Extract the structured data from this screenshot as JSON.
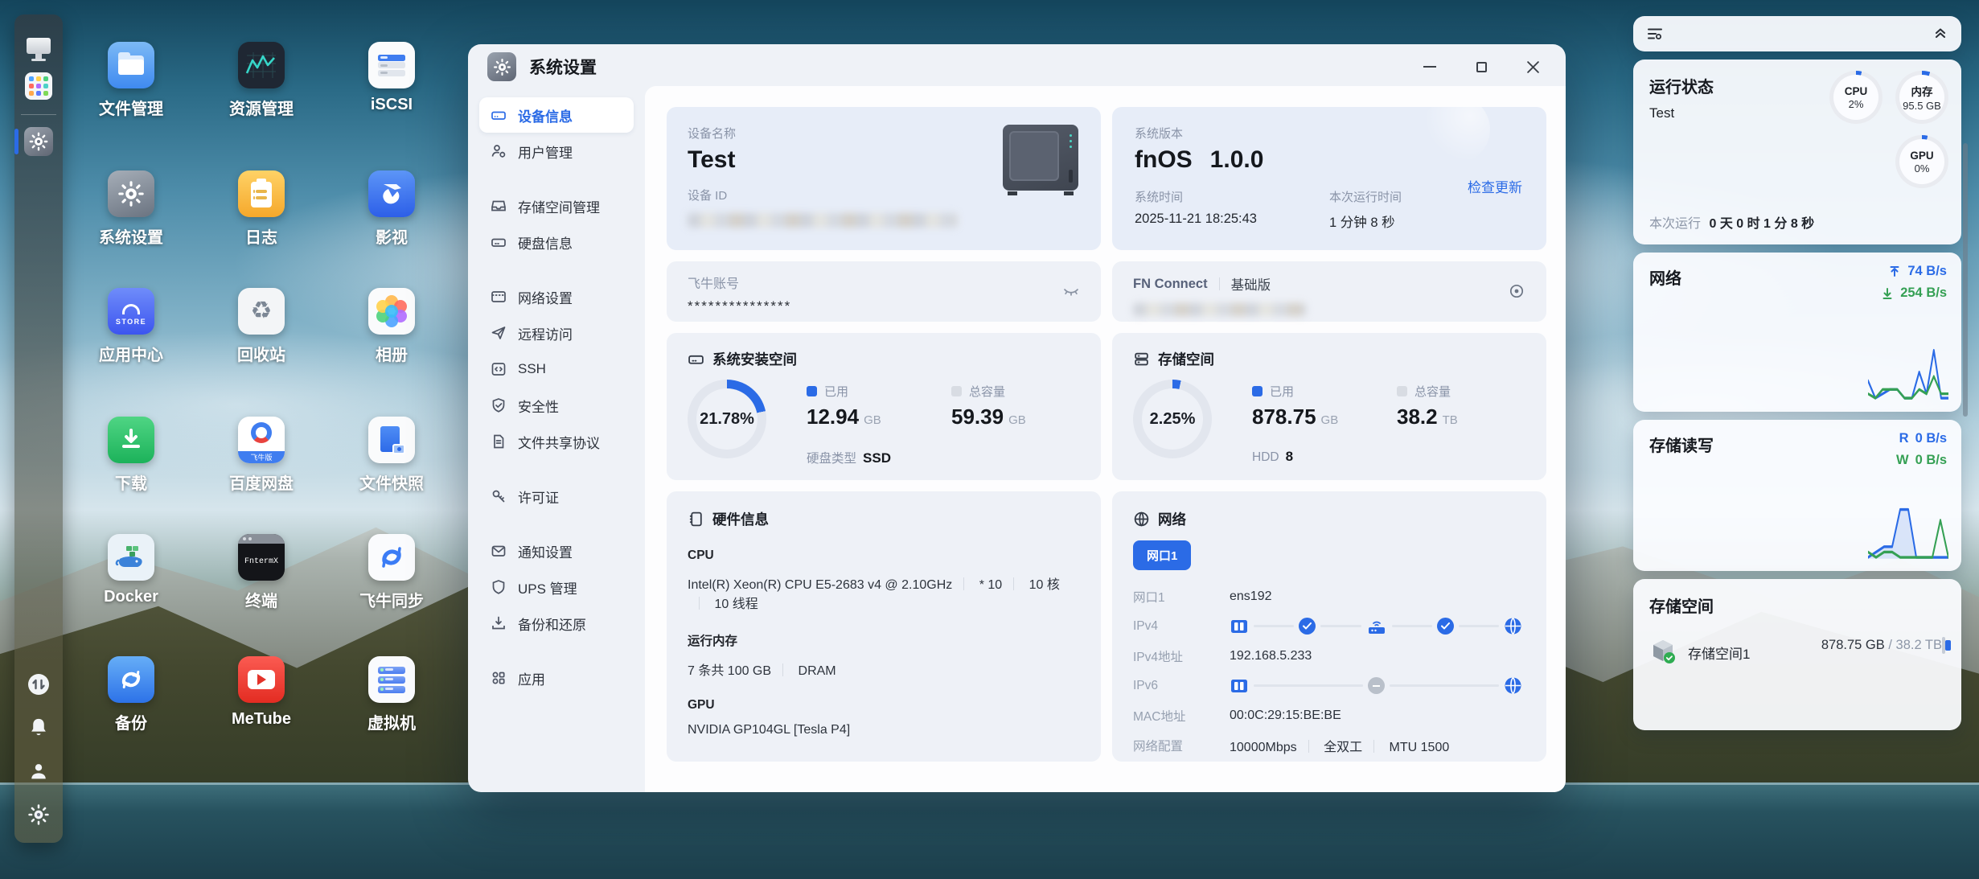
{
  "colors": {
    "accent": "#2b6be6",
    "green": "#35a054",
    "track": "#e2e6ee",
    "widget_track": "#e9ebf0"
  },
  "desktop": {
    "apps": [
      {
        "label": "文件管理"
      },
      {
        "label": "资源管理"
      },
      {
        "label": "iSCSI"
      },
      {
        "label": "系统设置"
      },
      {
        "label": "日志"
      },
      {
        "label": "影视"
      },
      {
        "label": "应用中心",
        "icon_text": "STORE"
      },
      {
        "label": "回收站",
        "glyph": "♻"
      },
      {
        "label": "相册"
      },
      {
        "label": "下载"
      },
      {
        "label": "百度网盘",
        "banner": "飞牛版"
      },
      {
        "label": "文件快照"
      },
      {
        "label": "Docker"
      },
      {
        "label": "终端",
        "icon_text": "FntermX"
      },
      {
        "label": "飞牛同步"
      },
      {
        "label": "备份"
      },
      {
        "label": "MeTube"
      },
      {
        "label": "虚拟机"
      }
    ]
  },
  "window": {
    "title": "系统设置",
    "nav": [
      {
        "label": "设备信息"
      },
      {
        "label": "用户管理"
      },
      {
        "label": "存储空间管理"
      },
      {
        "label": "硬盘信息"
      },
      {
        "label": "网络设置"
      },
      {
        "label": "远程访问"
      },
      {
        "label": "SSH"
      },
      {
        "label": "安全性"
      },
      {
        "label": "文件共享协议"
      },
      {
        "label": "许可证"
      },
      {
        "label": "通知设置"
      },
      {
        "label": "UPS 管理"
      },
      {
        "label": "备份和还原"
      },
      {
        "label": "应用"
      }
    ],
    "cards": {
      "device": {
        "name_label": "设备名称",
        "name": "Test",
        "id_label": "设备 ID"
      },
      "version": {
        "label": "系统版本",
        "name": "fnOS",
        "version": "1.0.0",
        "check_update": "检查更新",
        "time_label": "系统时间",
        "time": "2025-11-21 18:25:43",
        "uptime_label": "本次运行时间",
        "uptime": "1 分钟 8 秒"
      },
      "account": {
        "label": "飞牛账号",
        "value": "***************"
      },
      "fnconnect": {
        "brand": "FN Connect",
        "tier": "基础版"
      },
      "system_space": {
        "title": "系统安装空间",
        "percent": "21.78%",
        "percent_num": 21.78,
        "used_label": "已用",
        "used": "12.94",
        "used_unit": "GB",
        "total_label": "总容量",
        "total": "59.39",
        "total_unit": "GB",
        "disk_type_label": "硬盘类型",
        "disk_type": "SSD"
      },
      "storage_space": {
        "title": "存储空间",
        "percent": "2.25%",
        "percent_num": 2.25,
        "used_label": "已用",
        "used": "878.75",
        "used_unit": "GB",
        "total_label": "总容量",
        "total": "38.2",
        "total_unit": "TB",
        "disk_type_label": "HDD",
        "disk_type": "8"
      },
      "hardware": {
        "title": "硬件信息",
        "cpu_label": "CPU",
        "cpu": "Intel(R) Xeon(R) CPU E5-2683 v4 @ 2.10GHz",
        "cpu_mult": "* 10",
        "cpu_cores": "10 核",
        "cpu_threads": "10 线程",
        "mem_label": "运行内存",
        "mem": "7 条共 100 GB",
        "mem_type": "DRAM",
        "gpu_label": "GPU",
        "gpu": "NVIDIA GP104GL [Tesla P4]"
      },
      "network": {
        "title": "网络",
        "port_button": "网口1",
        "port_label": "网口1",
        "port": "ens192",
        "ipv4_label": "IPv4",
        "ipv4_addr_label": "IPv4地址",
        "ipv4_addr": "192.168.5.233",
        "ipv6_label": "IPv6",
        "mac_label": "MAC地址",
        "mac": "00:0C:29:15:BE:BE",
        "config_label": "网络配置",
        "speed": "10000Mbps",
        "duplex": "全双工",
        "mtu": "MTU 1500"
      }
    }
  },
  "widgets": {
    "status": {
      "title": "运行状态",
      "host": "Test",
      "cpu_label": "CPU",
      "cpu": "2%",
      "cpu_pct": 2,
      "mem_label": "内存",
      "mem": "95.5 GB",
      "mem_pct": 5,
      "gpu_label": "GPU",
      "gpu": "0%",
      "gpu_pct": 0.5,
      "uptime_label": "本次运行",
      "uptime": "0 天 0 时 1 分 8 秒"
    },
    "network": {
      "title": "网络",
      "up": "74 B/s",
      "down": "254 B/s",
      "chart": {
        "type": "line",
        "series": [
          {
            "name": "upload",
            "color": "#2b6be6",
            "values": [
              4,
              0,
              1,
              2,
              2,
              0,
              0,
              6,
              1,
              11,
              0,
              0
            ]
          },
          {
            "name": "download",
            "color": "#35a054",
            "values": [
              1,
              0,
              2,
              2,
              2,
              0,
              0,
              2,
              1,
              5,
              1,
              1
            ]
          }
        ]
      }
    },
    "diskio": {
      "title": "存储读写",
      "read_label": "R",
      "read": "0 B/s",
      "write_label": "W",
      "write": "0 B/s",
      "chart": {
        "type": "line",
        "series": [
          {
            "name": "read",
            "color": "#2b6be6",
            "fill": true,
            "values": [
              0,
              1,
              2,
              2,
              9,
              9,
              0,
              0,
              0,
              0,
              0
            ]
          },
          {
            "name": "write",
            "color": "#35a054",
            "values": [
              1,
              0,
              1,
              1,
              0,
              0,
              0,
              0,
              0,
              7,
              0
            ]
          }
        ]
      }
    },
    "storage": {
      "title": "存储空间",
      "name": "存储空间1",
      "used": "878.75 GB",
      "sep": "/",
      "total": "38.2 TB"
    }
  }
}
